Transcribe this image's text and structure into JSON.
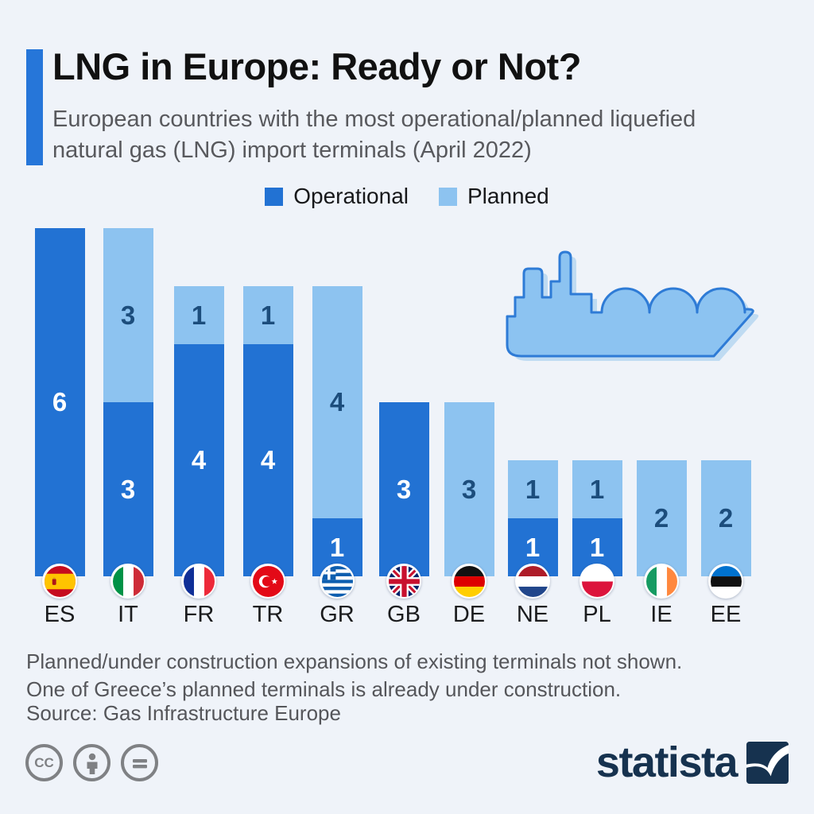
{
  "title": "LNG in Europe: Ready or Not?",
  "subtitle": "European countries with the most operational/planned liquefied natural gas (LNG) import terminals (April 2022)",
  "legend": {
    "operational": "Operational",
    "planned": "Planned"
  },
  "colors": {
    "operational": "#2272d3",
    "planned": "#8dc3f0",
    "accent": "#2676d9",
    "background": "#eff3f9",
    "value_on_dark": "#ffffff",
    "value_on_light": "#1c4d7c",
    "statista_navy": "#16324f",
    "license_gray": "#7f8184"
  },
  "chart_data": {
    "type": "bar",
    "stacked": true,
    "title": "LNG in Europe: Ready or Not?",
    "categories": [
      "ES",
      "IT",
      "FR",
      "TR",
      "GR",
      "GB",
      "DE",
      "NE",
      "PL",
      "IE",
      "EE"
    ],
    "series": [
      {
        "name": "Operational",
        "values": [
          6,
          3,
          4,
          4,
          1,
          3,
          0,
          1,
          1,
          0,
          0
        ]
      },
      {
        "name": "Planned",
        "values": [
          0,
          3,
          1,
          1,
          4,
          0,
          3,
          1,
          1,
          2,
          2
        ]
      }
    ],
    "flags": [
      "spain",
      "italy",
      "france",
      "turkey",
      "greece",
      "united-kingdom",
      "germany",
      "netherlands",
      "poland",
      "ireland",
      "estonia"
    ],
    "ylim": [
      0,
      6
    ],
    "grid": false,
    "legend_position": "top",
    "value_labels": "inside-segment"
  },
  "notes": {
    "line1": "Planned/under construction expansions of existing terminals not shown.",
    "line2": "One of Greece’s planned terminals is already under construction."
  },
  "source": "Source: Gas Infrastructure Europe",
  "license": {
    "cc_label": "CC",
    "icons": [
      "cc",
      "attribution",
      "no-derivatives"
    ]
  },
  "branding": {
    "logo_text": "statista"
  }
}
